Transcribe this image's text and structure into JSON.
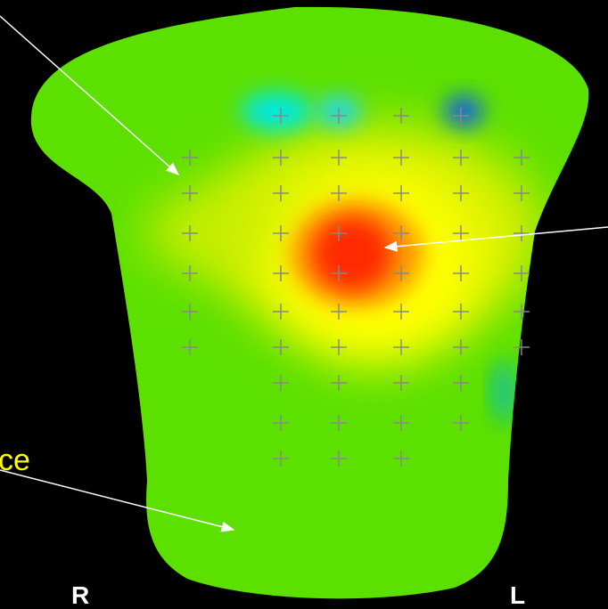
{
  "labels": {
    "partial_text": "ce",
    "right": "R",
    "left": "L"
  }
}
